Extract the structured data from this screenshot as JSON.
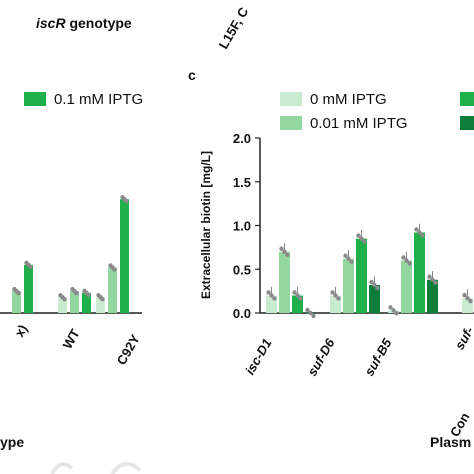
{
  "top_labels": {
    "genotype_prefix": "iscR",
    "genotype_suffix": " genotype",
    "clipped_rotated": "L15F, C"
  },
  "left_panel": {
    "legend": [
      {
        "label": "0.1 mM IPTG",
        "color": "#20b04b"
      }
    ],
    "tick_labels": [
      "x)",
      "WT",
      "C92Y"
    ],
    "axis_title_partial": "ype",
    "colors": {
      "c0": "#c9ebcf",
      "c1": "#92d7a0",
      "c2": "#20b04b",
      "c3": "#0f7d3a"
    },
    "chart_data": {
      "type": "bar",
      "groups": [
        "x)",
        "WT",
        "C92Y"
      ],
      "series": [
        {
          "values": [
            null,
            0.18,
            0.18
          ]
        },
        {
          "values": [
            0.25,
            0.25,
            0.52
          ]
        },
        {
          "values": [
            0.55,
            0.23,
            1.3
          ]
        }
      ]
    }
  },
  "right_panel": {
    "panel_label": "c",
    "legend": [
      {
        "label": "0 mM IPTG",
        "color": "#c9ebcf"
      },
      {
        "label": "0.01 mM IPTG",
        "color": "#92d7a0"
      }
    ],
    "legend_clipped_colors": [
      "#20b04b",
      "#0f7d3a"
    ],
    "xlabel_partial": "Plasm",
    "tick_labels": [
      "isc-D1",
      "suf-D6",
      "suf-B5",
      "suf-",
      "Con"
    ],
    "chart_data": {
      "type": "bar",
      "ylabel": "Extracellular biotin [mg/L]",
      "ylim": [
        0,
        2.0
      ],
      "yticks": [
        "0.0",
        "0.5",
        "1.0",
        "1.5",
        "2.0"
      ],
      "categories": [
        "isc-D1",
        "suf-D6",
        "suf-B5",
        "suf-"
      ],
      "series": [
        {
          "name": "0 mM IPTG",
          "color": "#c9ebcf",
          "values": [
            0.2,
            0.2,
            0.03,
            0.17
          ]
        },
        {
          "name": "0.01 mM IPTG",
          "color": "#92d7a0",
          "values": [
            0.7,
            0.62,
            0.6,
            null
          ]
        },
        {
          "name": "",
          "color": "#20b04b",
          "values": [
            0.2,
            0.85,
            0.92,
            null
          ]
        },
        {
          "name": "",
          "color": "#0f7d3a",
          "values": [
            0.0,
            0.32,
            0.38,
            null
          ]
        }
      ]
    }
  }
}
